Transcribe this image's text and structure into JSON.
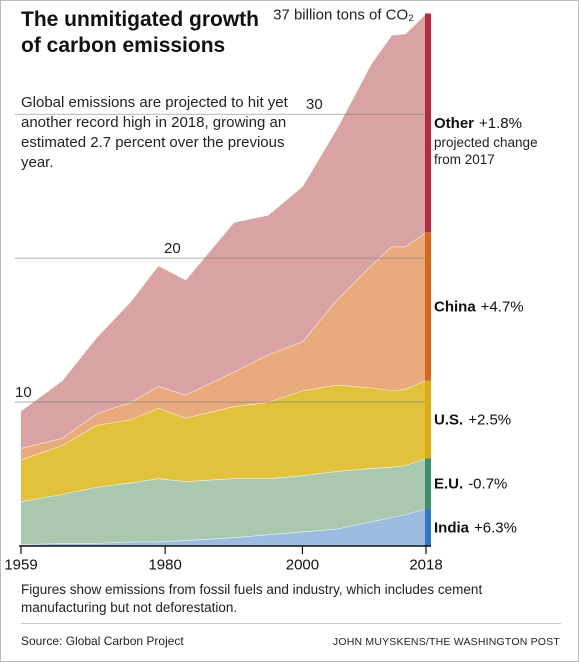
{
  "chart_data": {
    "type": "stacked_area",
    "title": "The unmitigated growth of carbon emissions",
    "subtitle": "Global emissions are projected to hit yet another record high in 2018, growing an estimated 2.7 percent over the previous year.",
    "top_label": "37 billion tons of CO₂",
    "change_note": "projected change from 2017",
    "note": "Figures show emissions from fossil fuels and industry, which includes cement manufacturing but not deforestation.",
    "source": "Source: Global Carbon Project",
    "credit": "JOHN MUYSKENS/THE WASHINGTON POST",
    "x": [
      1959,
      1965,
      1970,
      1975,
      1979,
      1983,
      1990,
      1995,
      2000,
      2005,
      2010,
      2013,
      2015,
      2018
    ],
    "xlim": [
      1959,
      2018
    ],
    "xticks": [
      1959,
      1980,
      2000,
      2018
    ],
    "ylim": [
      0,
      37
    ],
    "yticks": [
      10,
      20,
      30
    ],
    "grid": true,
    "series": [
      {
        "name": "India",
        "change": "+6.3%",
        "color": "#9dbde0",
        "strip_color": "#2f78c2",
        "values": [
          0.1,
          0.2,
          0.2,
          0.3,
          0.3,
          0.4,
          0.6,
          0.8,
          1.0,
          1.2,
          1.7,
          2.0,
          2.2,
          2.6
        ]
      },
      {
        "name": "E.U.",
        "change": "-0.7%",
        "color": "#a9c8ae",
        "strip_color": "#3f8d6c",
        "values": [
          3.0,
          3.4,
          3.9,
          4.1,
          4.4,
          4.1,
          4.1,
          3.9,
          3.9,
          4.0,
          3.7,
          3.5,
          3.4,
          3.5
        ]
      },
      {
        "name": "U.S.",
        "change": "+2.5%",
        "color": "#e2c23c",
        "strip_color": "#d9ad16",
        "values": [
          2.9,
          3.4,
          4.3,
          4.4,
          4.9,
          4.4,
          5.0,
          5.3,
          5.9,
          6.0,
          5.6,
          5.3,
          5.3,
          5.4
        ]
      },
      {
        "name": "China",
        "change": "+4.7%",
        "color": "#e9ab7e",
        "strip_color": "#d4691c",
        "values": [
          0.8,
          0.5,
          0.8,
          1.2,
          1.5,
          1.6,
          2.4,
          3.3,
          3.4,
          5.9,
          8.5,
          10.0,
          9.9,
          10.3
        ]
      },
      {
        "name": "Other",
        "change": "+1.8%",
        "color": "#d9a3a4",
        "strip_color": "#b12a3e",
        "values": [
          2.6,
          4.0,
          5.3,
          7.0,
          8.4,
          8.0,
          10.4,
          9.7,
          10.8,
          11.9,
          14.0,
          14.7,
          14.8,
          15.2
        ]
      }
    ]
  }
}
